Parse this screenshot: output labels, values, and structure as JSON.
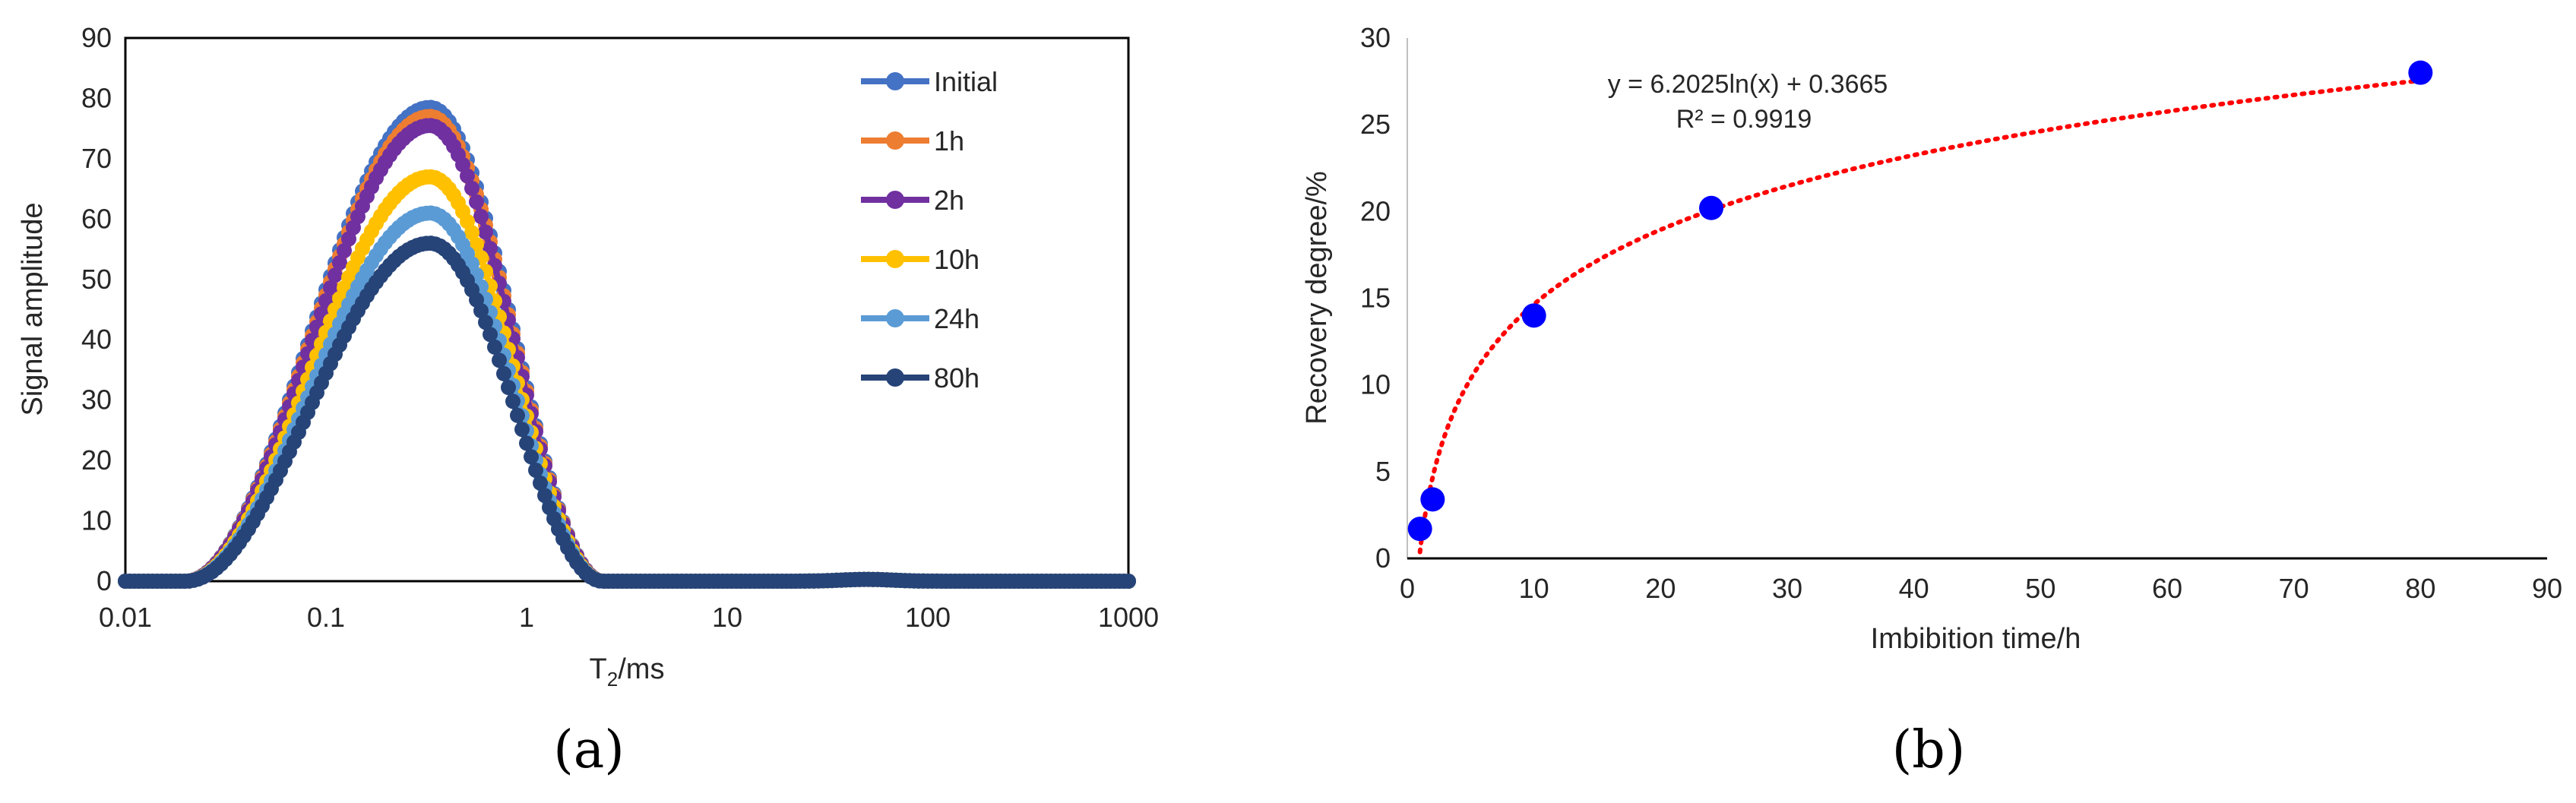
{
  "chart_data": [
    {
      "id": "a",
      "type": "line",
      "panel_label": "(a)",
      "xscale": "log",
      "xlabel": "T2/ms",
      "xlabel_main": "T",
      "xlabel_sub": "2",
      "xlabel_rest": "/ms",
      "ylabel": "Signal amplitude",
      "xlim": [
        0.01,
        1000
      ],
      "ylim": [
        0,
        90
      ],
      "xticks": [
        0.01,
        0.1,
        1,
        10,
        100,
        1000
      ],
      "xtick_labels": [
        "0.01",
        "0.1",
        "1",
        "10",
        "100",
        "1000"
      ],
      "yticks": [
        0,
        10,
        20,
        30,
        40,
        50,
        60,
        70,
        80,
        90
      ],
      "ytick_labels": [
        "0",
        "10",
        "20",
        "30",
        "40",
        "50",
        "60",
        "70",
        "80",
        "90"
      ],
      "legend_position": "top-right",
      "curve_shape": {
        "peak_x": 0.33,
        "start_x": 0.02,
        "end_x": 2.4,
        "minor_peak_x": 50,
        "minor_peak_y": 0.3
      },
      "series": [
        {
          "name": "Initial",
          "color": "#4472C4",
          "peak": 78.5
        },
        {
          "name": "1h",
          "color": "#ED7D31",
          "peak": 77
        },
        {
          "name": "2h",
          "color": "#7030A0",
          "peak": 75.5
        },
        {
          "name": "10h",
          "color": "#FFC000",
          "peak": 67
        },
        {
          "name": "24h",
          "color": "#5B9BD5",
          "peak": 61
        },
        {
          "name": "80h",
          "color": "#264478",
          "peak": 56
        }
      ]
    },
    {
      "id": "b",
      "type": "scatter",
      "panel_label": "(b)",
      "xlabel": "Imbibition time/h",
      "ylabel": "Recovery degree/%",
      "xlim": [
        0,
        90
      ],
      "ylim": [
        0,
        30
      ],
      "xticks": [
        0,
        10,
        20,
        30,
        40,
        50,
        60,
        70,
        80,
        90
      ],
      "xtick_labels": [
        "0",
        "10",
        "20",
        "30",
        "40",
        "50",
        "60",
        "70",
        "80",
        "90"
      ],
      "yticks": [
        0,
        5,
        10,
        15,
        20,
        25,
        30
      ],
      "ytick_labels": [
        "0",
        "5",
        "10",
        "15",
        "20",
        "25",
        "30"
      ],
      "points": {
        "x": [
          1,
          2,
          10,
          24,
          80
        ],
        "y": [
          1.7,
          3.4,
          14.0,
          20.2,
          28.0
        ]
      },
      "point_color": "#0000FF",
      "trendline": {
        "type": "log",
        "a": 6.2025,
        "b": 0.3665,
        "color": "#FF0000",
        "style": "dotted",
        "x_range": [
          1,
          80
        ]
      },
      "equation": "y = 6.2025ln(x) + 0.3665",
      "r_squared": "R² = 0.9919"
    }
  ]
}
